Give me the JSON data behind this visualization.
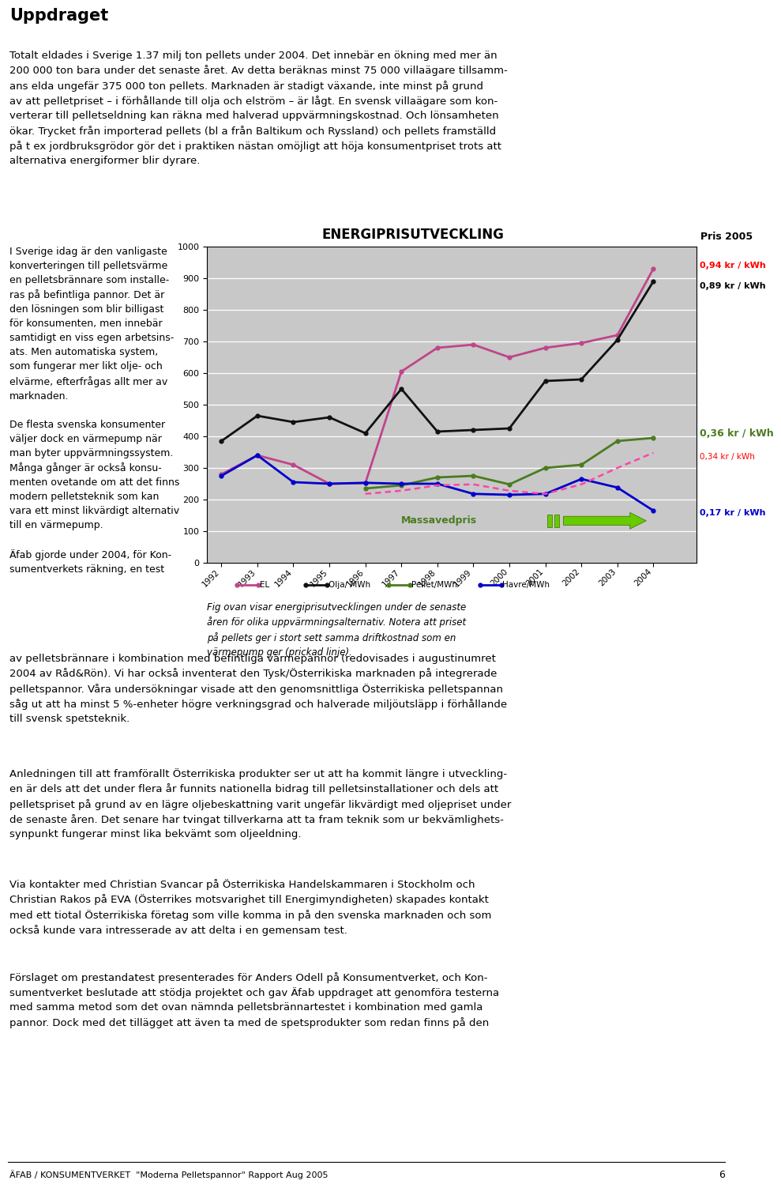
{
  "title": "ENERGIPRISUTVECKLING",
  "title_right": "Pris 2005",
  "years": [
    1992,
    1993,
    1994,
    1995,
    1996,
    1997,
    1998,
    1999,
    2000,
    2001,
    2002,
    2003,
    2004
  ],
  "el": [
    280,
    340,
    310,
    250,
    252,
    605,
    680,
    690,
    650,
    680,
    695,
    720,
    930
  ],
  "olja": [
    385,
    465,
    445,
    460,
    410,
    550,
    415,
    420,
    425,
    575,
    580,
    705,
    890
  ],
  "pellet": [
    null,
    null,
    null,
    null,
    235,
    245,
    270,
    275,
    248,
    300,
    310,
    385,
    395
  ],
  "havre": [
    275,
    340,
    255,
    250,
    253,
    250,
    250,
    218,
    215,
    218,
    265,
    238,
    165
  ],
  "pellet_dashed": [
    null,
    null,
    null,
    null,
    218,
    228,
    245,
    248,
    228,
    218,
    248,
    300,
    348
  ],
  "el_color": "#c0458a",
  "olja_color": "#111111",
  "pellet_color": "#4a7c20",
  "havre_color": "#0000cc",
  "pellet_dashed_color": "#ff44aa",
  "bg_color": "#c8c8c8",
  "ylim_max": 1000,
  "label_el_price": "0,94 kr / kWh",
  "label_olja_price": "0,89 kr / kWh",
  "label_pellet_price": "0,36 kr / kWh",
  "label_dashed_price": "0,34 kr / kWh",
  "label_havre_price": "0,17 kr / kWh",
  "massaved_label": "Massavedpris",
  "legend_labels": [
    "EL",
    "Olja/ MWh",
    "Pellet/MWh",
    "Havre/MWh"
  ],
  "caption_italic": "Fig ovan visar energiprisutvecklingen under de senaste\nåren för olika uppvärmningsalternativ. Notera att priset\npå pellets ger i stort sett samma driftkostnad som en\nvärmepump ger (prickad linje).",
  "footer": "ÄFAB / KONSUMENTVERKET  \"Moderna Pelletspannor\" Rapport Aug 2005",
  "page_num": "6",
  "heading": "Uppdraget",
  "top_para": "Totalt eldades i Sverige 1.37 milj ton pellets under 2004. Det innebär en ökning med mer än\n200 000 ton bara under det senaste året. Av detta beräknas minst 75 000 villaägare tillsamm-\nans elda ungefär 375 000 ton pellets. Marknaden är stadigt växande, inte minst på grund\nav att pelletpriset – i förhållande till olja och elström – är lågt. En svensk villaägare som kon-\nverterar till pelletseldning kan räkna med halverad uppvärmningskostnad. Och lönsamheten\nökar. Trycket från importerad pellets (bl a från Baltikum och Ryssland) och pellets framställd\npå t ex jordbruksgrödor gör det i praktiken nästan omöjligt att höja konsumentpriset trots att\nalternativa energiformer blir dyrare.",
  "left_col": "I Sverige idag är den vanligaste\nkonverteringen till pelletsvärme\nen pelletsbrännare som installe-\nras på befintliga pannor. Det är\nden lösningen som blir billigast\nför konsumenten, men innebär\nsamtidigt en viss egen arbetsins-\nats. Men automatiska system,\nsom fungerar mer likt olje- och\nelvärme, efterfrågas allt mer av\nmarknaden.\n\nDe flesta svenska konsumenter\nväljer dock en värmepump när\nman byter uppvärmningssystem.\nMånga gånger är också konsu-\nmenten ovetande om att det finns\nmodern pelletsteknik som kan\nvara ett minst likvärdigt alternativ\ntill en värmepump.\n\nÄfab gjorde under 2004, för Kon-\nsumentverkets räkning, en test",
  "body1": "av pelletsbrännare i kombination med befintliga värmepannor (redovisades i augustinumret\n2004 av Råd&Rön). Vi har också inventerat den Tysk/Österrikiska marknaden på integrerade\npelletspannor. Våra undersökningar visade att den genomsnittliga Österrikiska pelletspannan\nså̈g ut att ha minst 5 %-enheter högre verkningsgrad och halverade miljöutsläpp i förhållande\ntill svensk spetsteknik.",
  "body2": "Anledningen till att framförallt Österrikiska produkter ser ut att ha kommit längre i utveckling-\nen är dels att det under flera år funnits nationella bidrag till pelletsinstallationer och dels att\npelletspriset på grund av en lägre oljebeskattning varit ungefär likvärdigt med oljepriset under\nde senaste åren. Det senare har tvingat tillverkarna att ta fram teknik som ur bekvämlighets-\nsynpunkt fungerar minst lika bekvämt som oljeeldning.",
  "body3": "Via kontakter med Christian Svancar på Österrikiska Handelskammaren i Stockholm och\nChristian Rakos på EVA (Österrikes motsvarighet till Energimyndigheten) skapades kontakt\nmed ett tiotal Österrikiska företag som ville komma in på den svenska marknaden och som\nockså kunde vara intresserade av att delta i en gemensam test.",
  "body4": "Förslaget om prestandatest presenterades för Anders Odell på Konsumentverket, och Kon-\nsumentverket beslutade att stödja projektet och gav Äfab uppdraget att genomföra testerna\nmed samma metod som det ovan nämnda pelletsbrännartestet i kombination med gamla\npannor. Dock med det tillägget att även ta med de spetsprodukter som redan finns på den"
}
